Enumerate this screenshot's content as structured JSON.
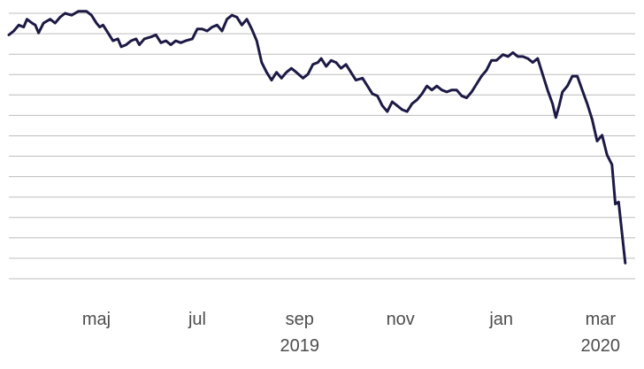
{
  "chart_data": {
    "type": "line",
    "title": "",
    "xlabel": "",
    "ylabel": "",
    "grid": true,
    "legend": "none",
    "color": "#1c1a45",
    "x_ticks": [
      {
        "label": "maj",
        "date": "2019-05-01"
      },
      {
        "label": "jul",
        "date": "2019-07-01"
      },
      {
        "label": "sep",
        "date": "2019-09-01"
      },
      {
        "label": "nov",
        "date": "2019-11-01"
      },
      {
        "label": "jan",
        "date": "2020-01-01"
      },
      {
        "label": "mar",
        "date": "2020-03-01"
      }
    ],
    "year_labels": [
      {
        "label": "2019",
        "date": "2019-09-01"
      },
      {
        "label": "2020",
        "date": "2020-03-01"
      }
    ],
    "xlim": [
      "2019-03-09",
      "2020-03-22"
    ],
    "ylim": [
      0,
      13.5
    ],
    "gridlines": 14,
    "series": [
      {
        "points": [
          [
            "2019-03-09",
            12.4
          ],
          [
            "2019-03-12",
            12.6
          ],
          [
            "2019-03-15",
            12.9
          ],
          [
            "2019-03-18",
            12.8
          ],
          [
            "2019-03-20",
            13.2
          ],
          [
            "2019-03-23",
            13.0
          ],
          [
            "2019-03-25",
            12.9
          ],
          [
            "2019-03-27",
            12.5
          ],
          [
            "2019-03-30",
            13.0
          ],
          [
            "2019-04-03",
            13.2
          ],
          [
            "2019-04-06",
            13.0
          ],
          [
            "2019-04-09",
            13.3
          ],
          [
            "2019-04-12",
            13.5
          ],
          [
            "2019-04-16",
            13.4
          ],
          [
            "2019-04-20",
            13.6
          ],
          [
            "2019-04-25",
            13.6
          ],
          [
            "2019-04-28",
            13.4
          ],
          [
            "2019-05-01",
            13.0
          ],
          [
            "2019-05-03",
            12.8
          ],
          [
            "2019-05-05",
            12.9
          ],
          [
            "2019-05-08",
            12.5
          ],
          [
            "2019-05-11",
            12.1
          ],
          [
            "2019-05-14",
            12.2
          ],
          [
            "2019-05-16",
            11.8
          ],
          [
            "2019-05-19",
            11.9
          ],
          [
            "2019-05-22",
            12.1
          ],
          [
            "2019-05-25",
            12.2
          ],
          [
            "2019-05-27",
            11.9
          ],
          [
            "2019-05-30",
            12.2
          ],
          [
            "2019-06-03",
            12.3
          ],
          [
            "2019-06-06",
            12.4
          ],
          [
            "2019-06-09",
            12.0
          ],
          [
            "2019-06-12",
            12.1
          ],
          [
            "2019-06-15",
            11.9
          ],
          [
            "2019-06-18",
            12.1
          ],
          [
            "2019-06-21",
            12.0
          ],
          [
            "2019-06-24",
            12.1
          ],
          [
            "2019-06-28",
            12.2
          ],
          [
            "2019-07-01",
            12.7
          ],
          [
            "2019-07-04",
            12.7
          ],
          [
            "2019-07-07",
            12.6
          ],
          [
            "2019-07-10",
            12.8
          ],
          [
            "2019-07-13",
            12.9
          ],
          [
            "2019-07-16",
            12.6
          ],
          [
            "2019-07-19",
            13.2
          ],
          [
            "2019-07-22",
            13.4
          ],
          [
            "2019-07-25",
            13.3
          ],
          [
            "2019-07-28",
            12.9
          ],
          [
            "2019-07-31",
            13.2
          ],
          [
            "2019-08-03",
            12.7
          ],
          [
            "2019-08-06",
            12.1
          ],
          [
            "2019-08-09",
            11.0
          ],
          [
            "2019-08-12",
            10.5
          ],
          [
            "2019-08-15",
            10.1
          ],
          [
            "2019-08-18",
            10.5
          ],
          [
            "2019-08-21",
            10.2
          ],
          [
            "2019-08-24",
            10.5
          ],
          [
            "2019-08-27",
            10.7
          ],
          [
            "2019-08-30",
            10.5
          ],
          [
            "2019-09-03",
            10.2
          ],
          [
            "2019-09-06",
            10.4
          ],
          [
            "2019-09-09",
            10.9
          ],
          [
            "2019-09-12",
            11.0
          ],
          [
            "2019-09-14",
            11.2
          ],
          [
            "2019-09-17",
            10.8
          ],
          [
            "2019-09-20",
            11.1
          ],
          [
            "2019-09-23",
            11.0
          ],
          [
            "2019-09-26",
            10.7
          ],
          [
            "2019-09-29",
            10.9
          ],
          [
            "2019-10-02",
            10.5
          ],
          [
            "2019-10-05",
            10.1
          ],
          [
            "2019-10-09",
            10.2
          ],
          [
            "2019-10-12",
            9.8
          ],
          [
            "2019-10-15",
            9.4
          ],
          [
            "2019-10-18",
            9.3
          ],
          [
            "2019-10-21",
            8.8
          ],
          [
            "2019-10-24",
            8.5
          ],
          [
            "2019-10-27",
            9.0
          ],
          [
            "2019-10-30",
            8.8
          ],
          [
            "2019-11-02",
            8.6
          ],
          [
            "2019-11-05",
            8.5
          ],
          [
            "2019-11-08",
            8.9
          ],
          [
            "2019-11-11",
            9.1
          ],
          [
            "2019-11-14",
            9.4
          ],
          [
            "2019-11-17",
            9.8
          ],
          [
            "2019-11-20",
            9.6
          ],
          [
            "2019-11-23",
            9.8
          ],
          [
            "2019-11-26",
            9.6
          ],
          [
            "2019-11-29",
            9.5
          ],
          [
            "2019-12-02",
            9.6
          ],
          [
            "2019-12-05",
            9.6
          ],
          [
            "2019-12-08",
            9.3
          ],
          [
            "2019-12-11",
            9.2
          ],
          [
            "2019-12-14",
            9.5
          ],
          [
            "2019-12-17",
            9.9
          ],
          [
            "2019-12-20",
            10.3
          ],
          [
            "2019-12-23",
            10.6
          ],
          [
            "2019-12-26",
            11.1
          ],
          [
            "2019-12-29",
            11.1
          ],
          [
            "2020-01-02",
            11.4
          ],
          [
            "2020-01-05",
            11.3
          ],
          [
            "2020-01-08",
            11.5
          ],
          [
            "2020-01-11",
            11.3
          ],
          [
            "2020-01-14",
            11.3
          ],
          [
            "2020-01-17",
            11.2
          ],
          [
            "2020-01-20",
            11.0
          ],
          [
            "2020-01-23",
            11.2
          ],
          [
            "2020-01-26",
            10.4
          ],
          [
            "2020-01-29",
            9.6
          ],
          [
            "2020-02-01",
            8.9
          ],
          [
            "2020-02-03",
            8.2
          ],
          [
            "2020-02-05",
            8.8
          ],
          [
            "2020-02-07",
            9.5
          ],
          [
            "2020-02-10",
            9.8
          ],
          [
            "2020-02-13",
            10.3
          ],
          [
            "2020-02-16",
            10.3
          ],
          [
            "2020-02-19",
            9.6
          ],
          [
            "2020-02-22",
            8.9
          ],
          [
            "2020-02-25",
            8.1
          ],
          [
            "2020-02-28",
            7.0
          ],
          [
            "2020-03-02",
            7.3
          ],
          [
            "2020-03-05",
            6.3
          ],
          [
            "2020-03-08",
            5.8
          ],
          [
            "2020-03-10",
            3.8
          ],
          [
            "2020-03-12",
            3.9
          ],
          [
            "2020-03-16",
            0.8
          ]
        ]
      }
    ]
  }
}
